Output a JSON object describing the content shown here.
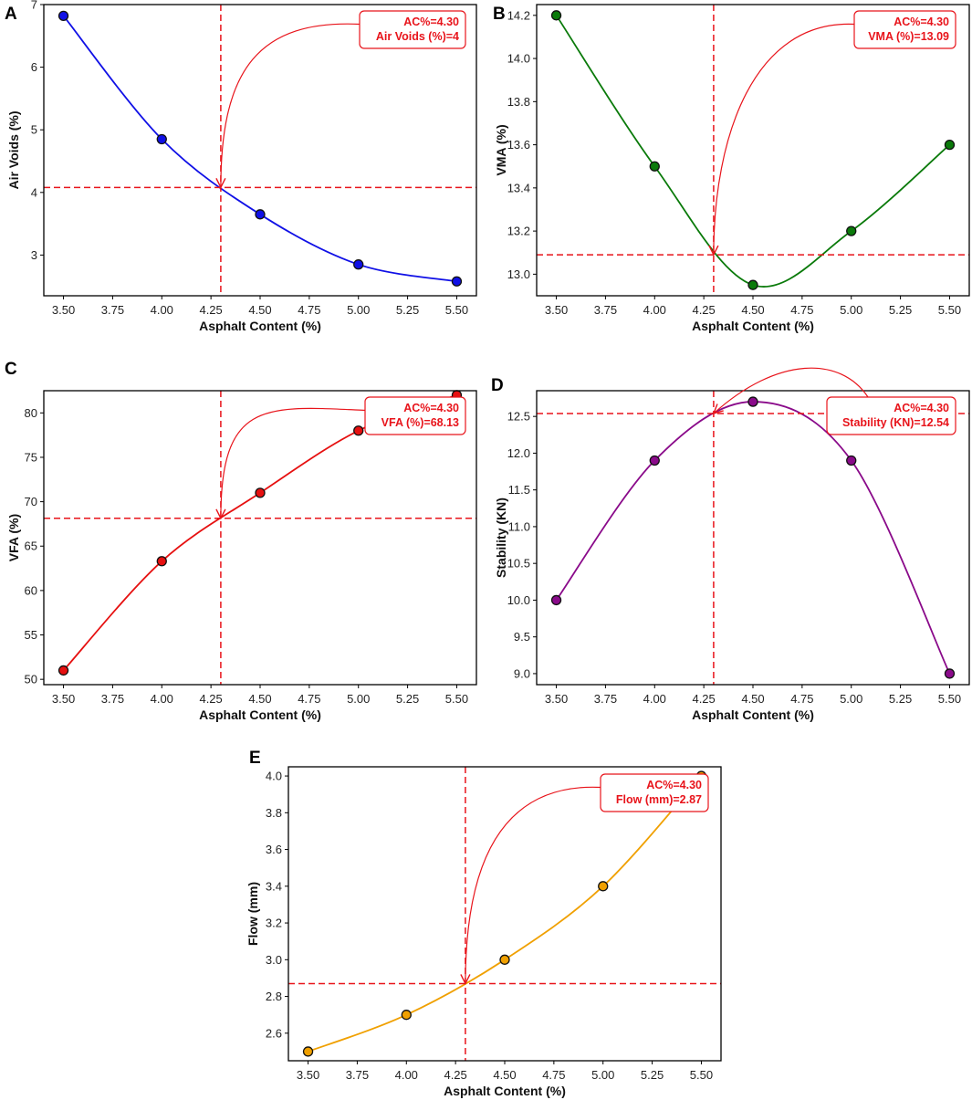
{
  "figure": {
    "annotation_color": "#e8141b",
    "panels": [
      {
        "letter": "A",
        "type": "line",
        "xlabel": "Asphalt Content (%)",
        "ylabel": "Air Voids (%)",
        "x": [
          3.5,
          4.0,
          4.5,
          5.0,
          5.5
        ],
        "y": [
          6.82,
          4.85,
          3.65,
          2.85,
          2.58
        ],
        "curve_color": "#1010e6",
        "xlim": [
          3.4,
          5.6
        ],
        "ylim": [
          2.35,
          7.0
        ],
        "xticks": [
          "3.50",
          "3.75",
          "4.00",
          "4.25",
          "4.50",
          "4.75",
          "5.00",
          "5.25",
          "5.50"
        ],
        "yticks": [
          "3",
          "4",
          "5",
          "6",
          "7"
        ],
        "optimum": {
          "x": 4.3,
          "y": 4.08
        },
        "annotation": [
          "AC%=4.30",
          "Air Voids (%)=4"
        ]
      },
      {
        "letter": "B",
        "type": "line",
        "xlabel": "Asphalt Content (%)",
        "ylabel": "VMA (%)",
        "x": [
          3.5,
          4.0,
          4.5,
          5.0,
          5.5
        ],
        "y": [
          14.2,
          13.5,
          12.95,
          13.2,
          13.6
        ],
        "curve_color": "#0a7a0a",
        "xlim": [
          3.4,
          5.6
        ],
        "ylim": [
          12.9,
          14.25
        ],
        "xticks": [
          "3.50",
          "3.75",
          "4.00",
          "4.25",
          "4.50",
          "4.75",
          "5.00",
          "5.25",
          "5.50"
        ],
        "yticks": [
          "13.0",
          "13.2",
          "13.4",
          "13.6",
          "13.8",
          "14.0",
          "14.2"
        ],
        "optimum": {
          "x": 4.3,
          "y": 13.09
        },
        "annotation": [
          "AC%=4.30",
          "VMA (%)=13.09"
        ]
      },
      {
        "letter": "C",
        "type": "line",
        "xlabel": "Asphalt Content (%)",
        "ylabel": "VFA (%)",
        "x": [
          3.5,
          4.0,
          4.5,
          5.0,
          5.5
        ],
        "y": [
          51.0,
          63.3,
          71.0,
          78.0,
          82.0
        ],
        "curve_color": "#e61010",
        "xlim": [
          3.4,
          5.6
        ],
        "ylim": [
          49.4,
          82.5
        ],
        "xticks": [
          "3.50",
          "3.75",
          "4.00",
          "4.25",
          "4.50",
          "4.75",
          "5.00",
          "5.25",
          "5.50"
        ],
        "yticks": [
          "50",
          "55",
          "60",
          "65",
          "70",
          "75",
          "80"
        ],
        "optimum": {
          "x": 4.3,
          "y": 68.13
        },
        "annotation": [
          "AC%=4.30",
          "VFA (%)=68.13"
        ]
      },
      {
        "letter": "D",
        "type": "line",
        "xlabel": "Asphalt Content (%)",
        "ylabel": "Stability (KN)",
        "x": [
          3.5,
          4.0,
          4.5,
          5.0,
          5.5
        ],
        "y": [
          10.0,
          11.9,
          12.7,
          11.9,
          9.0
        ],
        "curve_color": "#8a0a8a",
        "xlim": [
          3.4,
          5.6
        ],
        "ylim": [
          8.85,
          12.85
        ],
        "xticks": [
          "3.50",
          "3.75",
          "4.00",
          "4.25",
          "4.50",
          "4.75",
          "5.00",
          "5.25",
          "5.50"
        ],
        "yticks": [
          "9.0",
          "9.5",
          "10.0",
          "10.5",
          "11.0",
          "11.5",
          "12.0",
          "12.5"
        ],
        "optimum": {
          "x": 4.3,
          "y": 12.54
        },
        "annotation": [
          "AC%=4.30",
          "Stability (KN)=12.54"
        ]
      },
      {
        "letter": "E",
        "type": "line",
        "xlabel": "Asphalt Content (%)",
        "ylabel": "Flow (mm)",
        "x": [
          3.5,
          4.0,
          4.5,
          5.0,
          5.5
        ],
        "y": [
          2.5,
          2.7,
          3.0,
          3.4,
          4.0
        ],
        "curve_color": "#f0a000",
        "xlim": [
          3.4,
          5.6
        ],
        "ylim": [
          2.45,
          4.05
        ],
        "xticks": [
          "3.50",
          "3.75",
          "4.00",
          "4.25",
          "4.50",
          "4.75",
          "5.00",
          "5.25",
          "5.50"
        ],
        "yticks": [
          "2.6",
          "2.8",
          "3.0",
          "3.2",
          "3.4",
          "3.6",
          "3.8",
          "4.0"
        ],
        "optimum": {
          "x": 4.3,
          "y": 2.87
        },
        "annotation": [
          "AC%=4.30",
          "Flow (mm)=2.87"
        ]
      }
    ]
  }
}
